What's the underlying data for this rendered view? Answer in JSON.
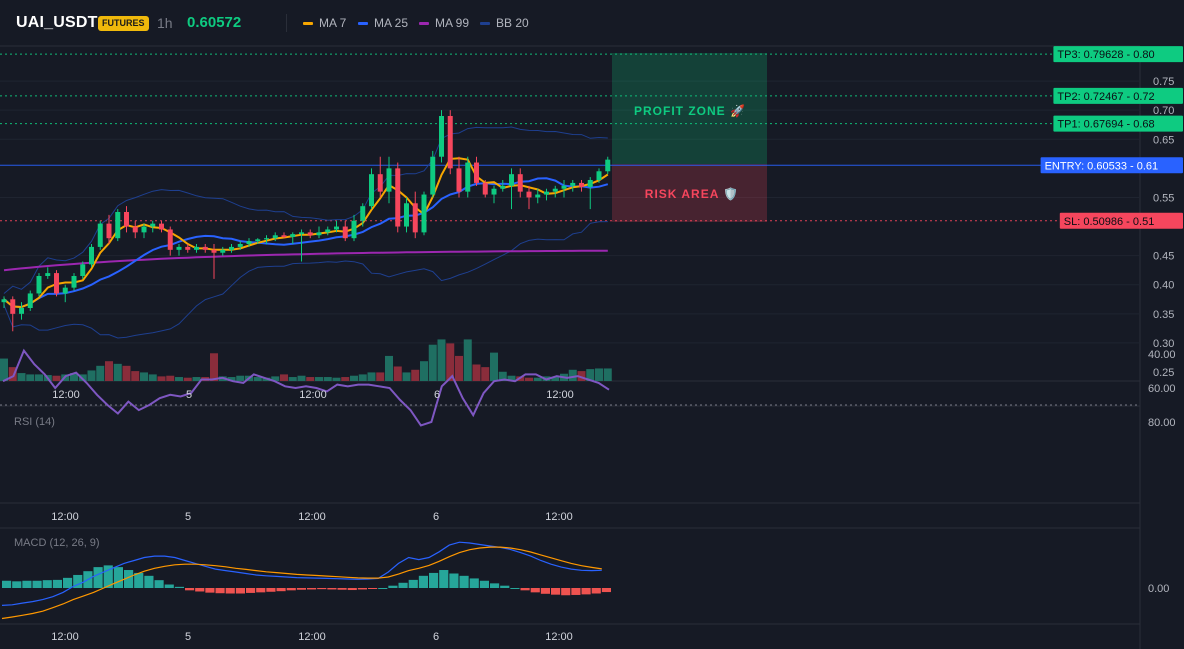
{
  "header": {
    "symbol": "UAI_USDT",
    "badge": "FUTURES",
    "timeframe": "1h",
    "last_price": "0.60572",
    "indicators": [
      {
        "label": "MA 7",
        "color": "#f7a600"
      },
      {
        "label": "MA 25",
        "color": "#2962ff"
      },
      {
        "label": "MA 99",
        "color": "#9c27b0"
      },
      {
        "label": "BB 20",
        "color": "#1e3f8f"
      }
    ]
  },
  "colors": {
    "up": "#0ecb81",
    "down": "#f6465d",
    "vol_up": "#1f6f62",
    "vol_down": "#8a2d3b",
    "rsi": "#7e57c2",
    "macd": "#2962ff",
    "signal": "#ff9800"
  },
  "x_axis_labels": [
    "12:00",
    "5",
    "12:00",
    "6",
    "12:00"
  ],
  "annotations": {
    "profit_zone": "PROFIT ZONE 🚀",
    "risk_area": "RISK AREA 🛡️",
    "levels": [
      {
        "label": "TP3: 0.79628",
        "axis": "0.80",
        "price": 0.79628,
        "kind": "tp"
      },
      {
        "label": "TP2: 0.72467",
        "axis": "0.72",
        "price": 0.72467,
        "kind": "tp"
      },
      {
        "label": "TP1: 0.67694",
        "axis": "0.68",
        "price": 0.67694,
        "kind": "tp"
      },
      {
        "label": "ENTRY: 0.60533",
        "axis": "0.61",
        "price": 0.60533,
        "kind": "entry"
      },
      {
        "label": "SL: 0.50986",
        "axis": "0.51",
        "price": 0.50986,
        "kind": "sl"
      }
    ]
  },
  "chart_data": [
    {
      "type": "candlestick",
      "title": "UAI_USDT",
      "y_ticks": [
        "0.75",
        "0.70",
        "0.65",
        "0.55",
        "0.45",
        "0.40",
        "0.35",
        "0.30",
        "0.25"
      ],
      "ylim": [
        0.235,
        0.805
      ],
      "candles": [
        [
          0.37,
          0.38,
          0.36,
          0.375
        ],
        [
          0.375,
          0.38,
          0.32,
          0.35
        ],
        [
          0.35,
          0.37,
          0.34,
          0.36
        ],
        [
          0.36,
          0.39,
          0.355,
          0.385
        ],
        [
          0.385,
          0.42,
          0.38,
          0.415
        ],
        [
          0.415,
          0.43,
          0.41,
          0.42
        ],
        [
          0.42,
          0.425,
          0.38,
          0.385
        ],
        [
          0.385,
          0.4,
          0.37,
          0.395
        ],
        [
          0.395,
          0.42,
          0.39,
          0.415
        ],
        [
          0.415,
          0.44,
          0.41,
          0.435
        ],
        [
          0.435,
          0.47,
          0.43,
          0.465
        ],
        [
          0.465,
          0.51,
          0.46,
          0.505
        ],
        [
          0.505,
          0.52,
          0.47,
          0.48
        ],
        [
          0.48,
          0.53,
          0.475,
          0.525
        ],
        [
          0.525,
          0.535,
          0.49,
          0.5
        ],
        [
          0.5,
          0.51,
          0.48,
          0.49
        ],
        [
          0.49,
          0.505,
          0.48,
          0.5
        ],
        [
          0.5,
          0.51,
          0.49,
          0.505
        ],
        [
          0.505,
          0.51,
          0.49,
          0.495
        ],
        [
          0.495,
          0.5,
          0.45,
          0.46
        ],
        [
          0.46,
          0.47,
          0.45,
          0.465
        ],
        [
          0.465,
          0.47,
          0.455,
          0.46
        ],
        [
          0.46,
          0.47,
          0.455,
          0.465
        ],
        [
          0.465,
          0.47,
          0.455,
          0.46
        ],
        [
          0.46,
          0.47,
          0.41,
          0.455
        ],
        [
          0.455,
          0.465,
          0.45,
          0.46
        ],
        [
          0.46,
          0.47,
          0.455,
          0.465
        ],
        [
          0.465,
          0.475,
          0.46,
          0.47
        ],
        [
          0.47,
          0.48,
          0.465,
          0.475
        ],
        [
          0.475,
          0.48,
          0.47,
          0.478
        ],
        [
          0.478,
          0.485,
          0.47,
          0.48
        ],
        [
          0.48,
          0.49,
          0.475,
          0.485
        ],
        [
          0.485,
          0.49,
          0.48,
          0.482
        ],
        [
          0.482,
          0.49,
          0.47,
          0.487
        ],
        [
          0.487,
          0.495,
          0.44,
          0.49
        ],
        [
          0.49,
          0.495,
          0.48,
          0.485
        ],
        [
          0.485,
          0.5,
          0.48,
          0.49
        ],
        [
          0.49,
          0.5,
          0.485,
          0.495
        ],
        [
          0.495,
          0.51,
          0.49,
          0.5
        ],
        [
          0.5,
          0.51,
          0.475,
          0.48
        ],
        [
          0.48,
          0.52,
          0.475,
          0.51
        ],
        [
          0.51,
          0.54,
          0.5,
          0.535
        ],
        [
          0.535,
          0.6,
          0.53,
          0.59
        ],
        [
          0.59,
          0.62,
          0.55,
          0.56
        ],
        [
          0.56,
          0.62,
          0.54,
          0.6
        ],
        [
          0.6,
          0.61,
          0.49,
          0.5
        ],
        [
          0.5,
          0.55,
          0.49,
          0.54
        ],
        [
          0.54,
          0.56,
          0.48,
          0.49
        ],
        [
          0.49,
          0.56,
          0.485,
          0.555
        ],
        [
          0.555,
          0.63,
          0.55,
          0.62
        ],
        [
          0.62,
          0.7,
          0.61,
          0.69
        ],
        [
          0.69,
          0.7,
          0.59,
          0.6
        ],
        [
          0.6,
          0.62,
          0.55,
          0.56
        ],
        [
          0.56,
          0.62,
          0.55,
          0.61
        ],
        [
          0.61,
          0.62,
          0.57,
          0.575
        ],
        [
          0.575,
          0.58,
          0.55,
          0.555
        ],
        [
          0.555,
          0.57,
          0.54,
          0.565
        ],
        [
          0.565,
          0.58,
          0.56,
          0.57
        ],
        [
          0.57,
          0.6,
          0.53,
          0.59
        ],
        [
          0.59,
          0.6,
          0.55,
          0.56
        ],
        [
          0.56,
          0.57,
          0.53,
          0.55
        ],
        [
          0.55,
          0.565,
          0.54,
          0.555
        ],
        [
          0.555,
          0.565,
          0.545,
          0.56
        ],
        [
          0.56,
          0.57,
          0.55,
          0.565
        ],
        [
          0.565,
          0.58,
          0.55,
          0.57
        ],
        [
          0.57,
          0.58,
          0.56,
          0.575
        ],
        [
          0.575,
          0.58,
          0.56,
          0.568
        ],
        [
          0.568,
          0.585,
          0.53,
          0.58
        ],
        [
          0.58,
          0.6,
          0.575,
          0.595
        ],
        [
          0.595,
          0.62,
          0.59,
          0.615
        ]
      ],
      "volume": [
        0.34,
        0.21,
        0.12,
        0.1,
        0.1,
        0.09,
        0.08,
        0.1,
        0.12,
        0.1,
        0.16,
        0.23,
        0.3,
        0.26,
        0.23,
        0.15,
        0.13,
        0.1,
        0.07,
        0.08,
        0.06,
        0.05,
        0.06,
        0.06,
        0.42,
        0.07,
        0.06,
        0.08,
        0.08,
        0.06,
        0.05,
        0.07,
        0.1,
        0.06,
        0.08,
        0.06,
        0.06,
        0.06,
        0.05,
        0.06,
        0.08,
        0.1,
        0.13,
        0.13,
        0.38,
        0.22,
        0.13,
        0.17,
        0.3,
        0.55,
        0.63,
        0.57,
        0.38,
        0.63,
        0.25,
        0.21,
        0.43,
        0.14,
        0.08,
        0.07,
        0.05,
        0.05,
        0.07,
        0.06,
        0.11,
        0.17,
        0.15,
        0.18,
        0.19,
        0.19
      ]
    },
    {
      "type": "line",
      "title": "RSI (14)",
      "y_ticks": [
        "80.00",
        "60.00",
        "40.00"
      ],
      "ylim": [
        32,
        88
      ],
      "values": [
        56,
        53,
        38,
        46,
        52,
        60,
        53,
        51,
        57,
        64,
        70,
        75,
        68,
        73,
        70,
        66,
        64,
        65,
        63,
        55,
        55,
        54,
        56,
        57,
        52,
        54,
        56,
        59,
        60,
        59,
        60,
        62,
        58,
        59,
        58,
        58,
        59,
        60,
        67,
        73,
        82,
        80,
        59,
        53,
        66,
        76,
        63,
        56,
        55,
        56,
        52,
        52,
        55,
        53,
        54,
        53,
        55,
        57,
        61
      ],
      "reference_line": 70
    },
    {
      "type": "bar",
      "title": "MACD (12, 26, 9)",
      "y_ticks": [
        "0.00"
      ],
      "ylim": [
        -0.014,
        0.019
      ],
      "histogram": [
        0.0025,
        0.0023,
        0.0025,
        0.0025,
        0.0027,
        0.0028,
        0.0035,
        0.0045,
        0.0058,
        0.0072,
        0.0078,
        0.0072,
        0.0062,
        0.0052,
        0.0042,
        0.0027,
        0.0012,
        0.0004,
        -0.0008,
        -0.0012,
        -0.0016,
        -0.0018,
        -0.0019,
        -0.0019,
        -0.0017,
        -0.0015,
        -0.0013,
        -0.0011,
        -0.0008,
        -0.0006,
        -0.0005,
        -0.0004,
        -0.0005,
        -0.0006,
        -0.0007,
        -0.0005,
        -0.0003,
        0.0,
        0.0008,
        0.0018,
        0.0028,
        0.0042,
        0.0052,
        0.0062,
        0.005,
        0.0042,
        0.0033,
        0.0025,
        0.0016,
        0.0008,
        0.0,
        -0.0008,
        -0.0015,
        -0.002,
        -0.0023,
        -0.0025,
        -0.0024,
        -0.0022,
        -0.0019,
        -0.0014
      ],
      "macd": [
        -0.006,
        -0.0058,
        -0.0052,
        -0.0047,
        -0.004,
        -0.003,
        -0.0015,
        0.0005,
        0.002,
        0.004,
        0.0055,
        0.007,
        0.0085,
        0.0095,
        0.0105,
        0.011,
        0.011,
        0.0105,
        0.0095,
        0.0085,
        0.0075,
        0.0065,
        0.006,
        0.0055,
        0.005,
        0.0045,
        0.0042,
        0.004,
        0.0038,
        0.0036,
        0.0035,
        0.0034,
        0.0033,
        0.0032,
        0.0031,
        0.003,
        0.0031,
        0.0033,
        0.0055,
        0.0085,
        0.0105,
        0.0098,
        0.0105,
        0.0125,
        0.0148,
        0.0158,
        0.0155,
        0.015,
        0.0145,
        0.014,
        0.0133,
        0.0122,
        0.011,
        0.0095,
        0.0082,
        0.0072,
        0.0065,
        0.0061,
        0.006,
        0.0061
      ],
      "signal": [
        -0.0105,
        -0.01,
        -0.0094,
        -0.0088,
        -0.008,
        -0.0068,
        -0.0055,
        -0.004,
        -0.0028,
        -0.0015,
        0.0,
        0.0015,
        0.003,
        0.0045,
        0.0058,
        0.0068,
        0.0075,
        0.008,
        0.0082,
        0.0082,
        0.008,
        0.0077,
        0.0073,
        0.0068,
        0.0064,
        0.006,
        0.0056,
        0.0053,
        0.005,
        0.0047,
        0.0045,
        0.0043,
        0.0041,
        0.0039,
        0.0037,
        0.0035,
        0.0034,
        0.0034,
        0.0038,
        0.0048,
        0.006,
        0.0068,
        0.0078,
        0.0092,
        0.0108,
        0.0122,
        0.0132,
        0.0138,
        0.0141,
        0.0141,
        0.0138,
        0.0132,
        0.0124,
        0.0114,
        0.0104,
        0.0094,
        0.0085,
        0.0077,
        0.0071,
        0.0066
      ]
    }
  ]
}
